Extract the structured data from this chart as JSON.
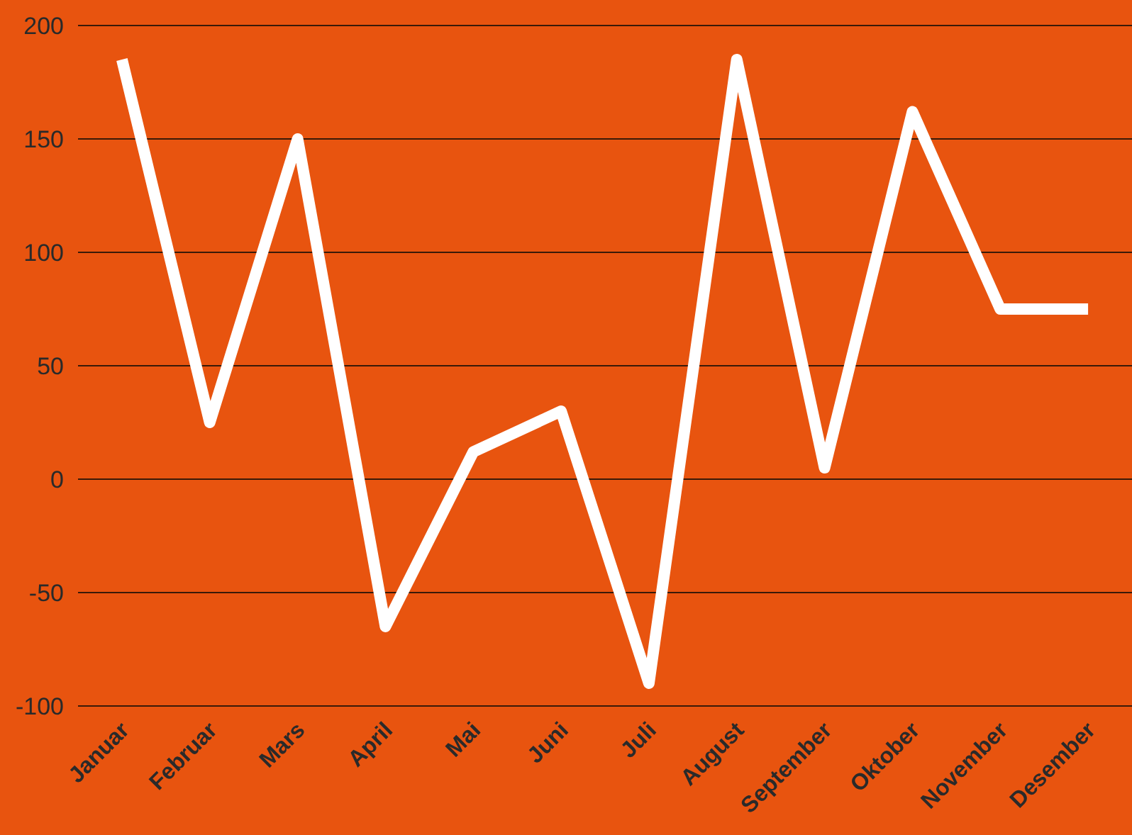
{
  "chart_data": {
    "type": "line",
    "categories": [
      "Januar",
      "Februar",
      "Mars",
      "April",
      "Mai",
      "Juni",
      "Juli",
      "August",
      "September",
      "Oktober",
      "November",
      "Desember"
    ],
    "series": [
      {
        "color": "#ffffff",
        "values": [
          185,
          25,
          150,
          -65,
          12,
          30,
          -90,
          185,
          5,
          162,
          75,
          75
        ]
      }
    ],
    "ylim": [
      -100,
      200
    ],
    "yticks": [
      -100,
      -50,
      0,
      50,
      100,
      150,
      200
    ],
    "grid": "y",
    "marker": "none",
    "line_style": "solid"
  }
}
